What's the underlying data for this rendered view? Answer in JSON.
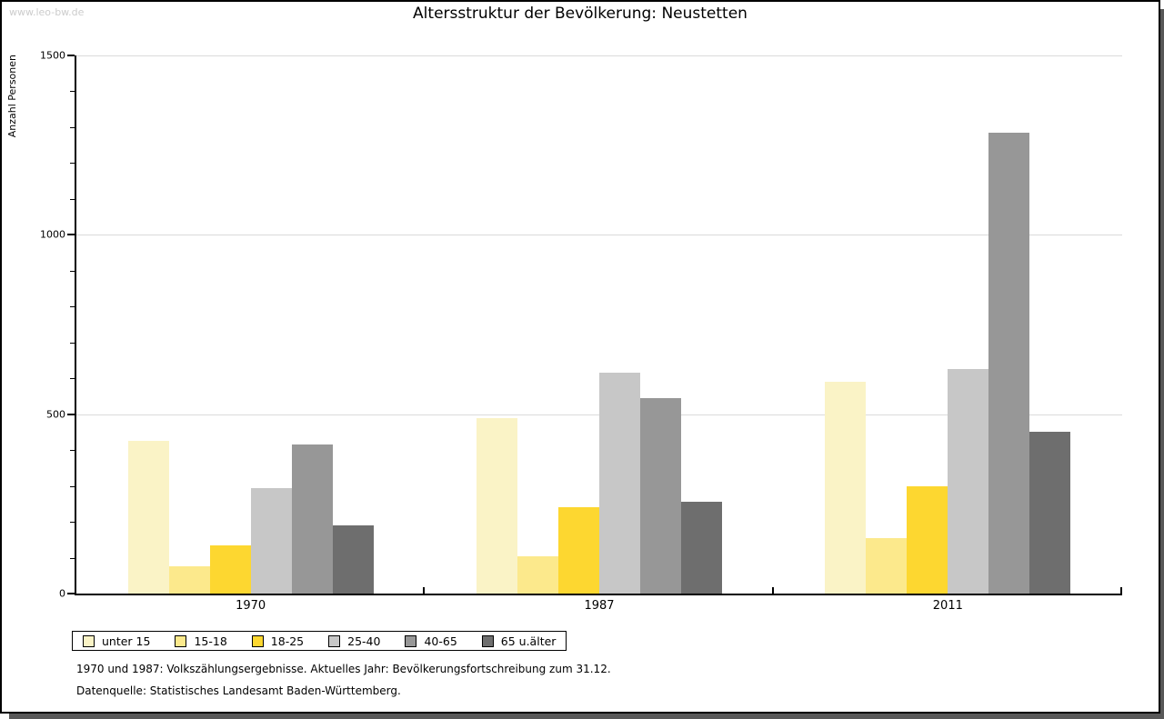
{
  "watermark": "www.leo-bw.de",
  "chart_data": {
    "type": "bar",
    "title": "Altersstruktur der Bevölkerung: Neustetten",
    "xlabel": "",
    "ylabel": "Anzahl Personen",
    "ylim": [
      0,
      1500
    ],
    "y_major_ticks": [
      0,
      500,
      1000,
      1500
    ],
    "y_minor_step": 100,
    "grid": true,
    "legend_position": "bottom-left",
    "categories": [
      "1970",
      "1987",
      "2011"
    ],
    "series": [
      {
        "name": "unter 15",
        "color": "#FAF3C6",
        "values": [
          425,
          490,
          590
        ]
      },
      {
        "name": "15-18",
        "color": "#FCE98C",
        "values": [
          75,
          105,
          155
        ]
      },
      {
        "name": "18-25",
        "color": "#FDD730",
        "values": [
          135,
          240,
          300
        ]
      },
      {
        "name": "25-40",
        "color": "#C7C7C7",
        "values": [
          295,
          615,
          625
        ]
      },
      {
        "name": "40-65",
        "color": "#979797",
        "values": [
          415,
          545,
          1285
        ]
      },
      {
        "name": "65 u.älter",
        "color": "#6E6E6E",
        "values": [
          190,
          255,
          450
        ]
      }
    ]
  },
  "footnotes": [
    "1970 und 1987: Volkszählungsergebnisse. Aktuelles Jahr: Bevölkerungsfortschreibung zum 31.12.",
    "Datenquelle: Statistisches Landesamt Baden-Württemberg."
  ],
  "frame": {
    "border_color": "#000000",
    "shadow_color": "#585858",
    "background": "#ffffff"
  }
}
